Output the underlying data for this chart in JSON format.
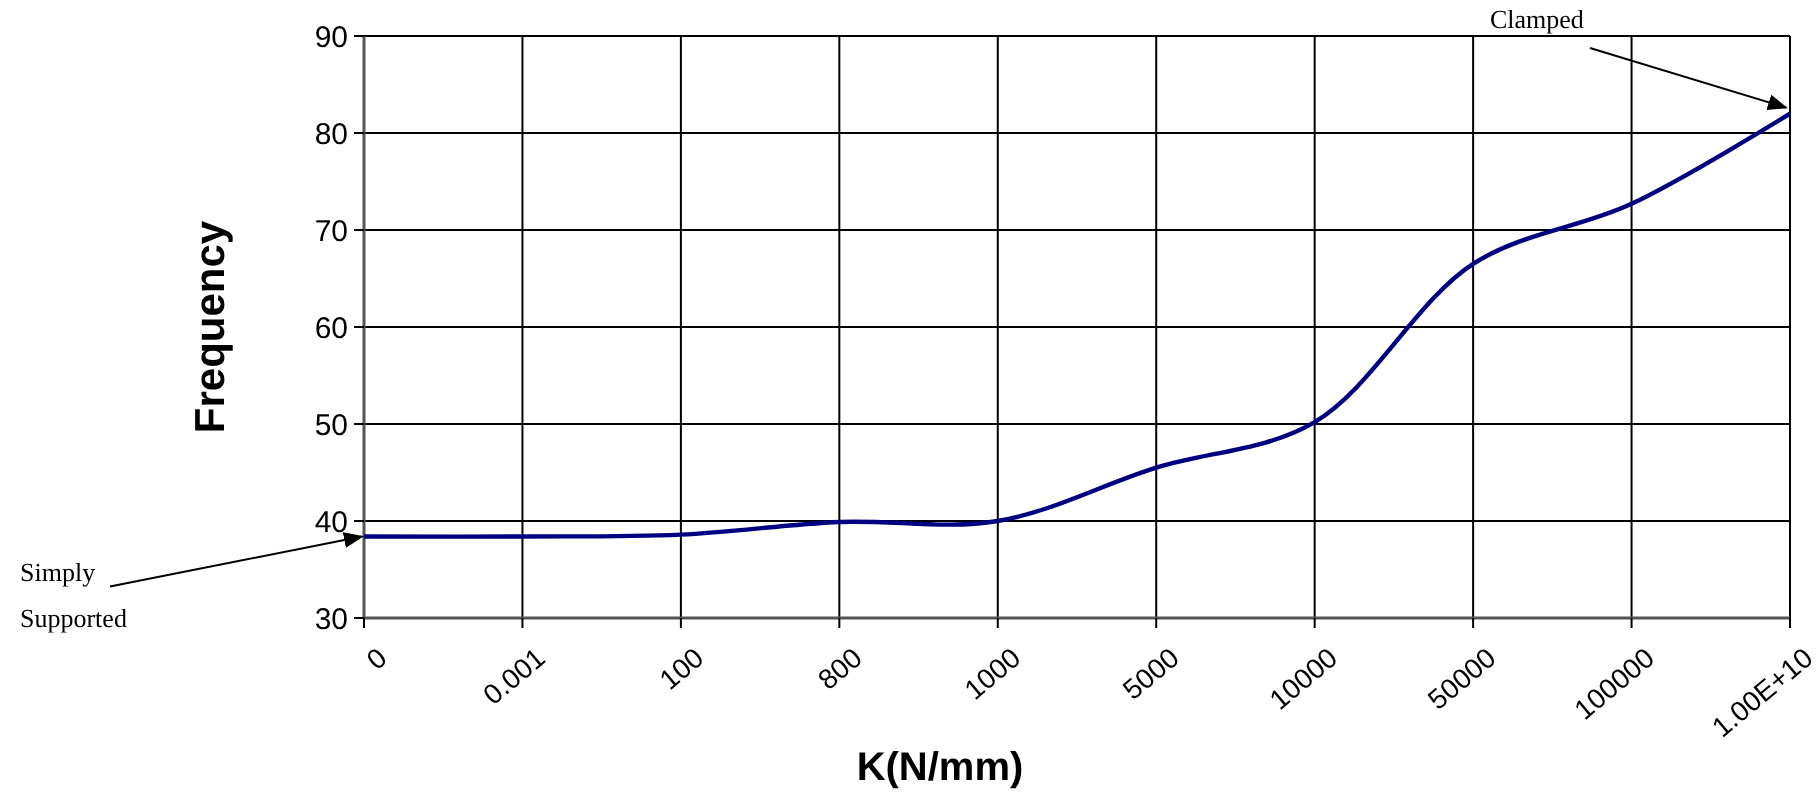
{
  "chart_data": {
    "type": "line",
    "xlabel": "K(N/mm)",
    "ylabel": "Frequency",
    "categories": [
      "0",
      "0.001",
      "100",
      "800",
      "1000",
      "5000",
      "10000",
      "50000",
      "100000",
      "1.00E+10"
    ],
    "series": [
      {
        "color": "#000080",
        "values": [
          38.4,
          38.4,
          38.6,
          39.9,
          40.0,
          45.5,
          50.2,
          66.5,
          72.7,
          82.0
        ]
      }
    ],
    "ylim": [
      30,
      90
    ],
    "yticks": [
      30,
      40,
      50,
      60,
      70,
      80,
      90
    ],
    "grid": true,
    "marker": "none",
    "line_style": "solid",
    "annotations": [
      {
        "text": "Simply Supported",
        "x": "0",
        "y": 38.4
      },
      {
        "text": "Clamped",
        "x": "1.00E+10",
        "y": 82.0
      }
    ]
  }
}
